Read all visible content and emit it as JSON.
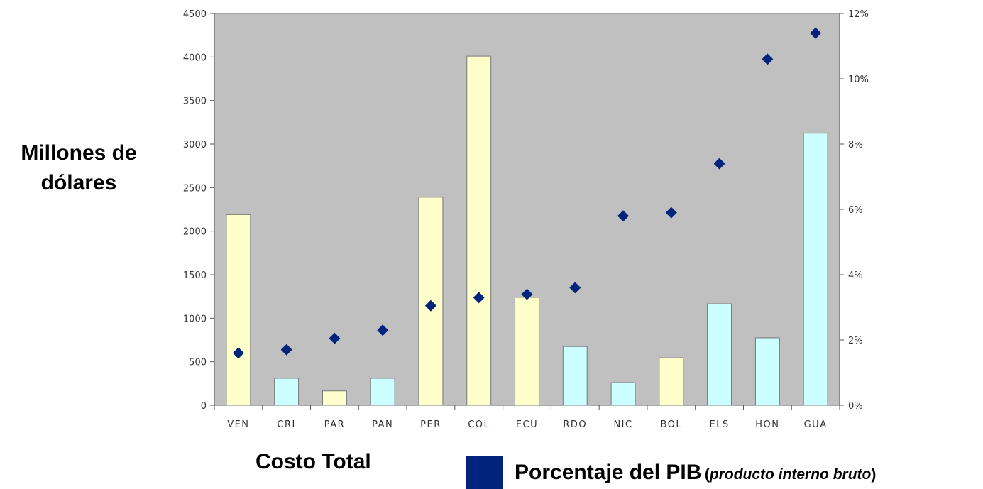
{
  "chart_data": {
    "type": "bar",
    "categories": [
      "VEN",
      "CRI",
      "PAR",
      "PAN",
      "PER",
      "COL",
      "ECU",
      "RDO",
      "NIC",
      "BOL",
      "ELS",
      "HON",
      "GUA"
    ],
    "series": [
      {
        "name": "Costo Total",
        "type": "bar",
        "axis": "left",
        "values": [
          2190,
          310,
          165,
          310,
          2390,
          4010,
          1240,
          675,
          260,
          545,
          1165,
          775,
          3125
        ],
        "bar_colors": [
          "#ffffcc",
          "#ccffff",
          "#ffffcc",
          "#ccffff",
          "#ffffcc",
          "#ffffcc",
          "#ffffcc",
          "#ccffff",
          "#ccffff",
          "#ffffcc",
          "#ccffff",
          "#ccffff",
          "#ccffff"
        ]
      },
      {
        "name": "Porcentaje del PIB",
        "type": "scatter",
        "axis": "right",
        "marker": "diamond",
        "color": "#00237c",
        "values": [
          1.6,
          1.7,
          2.05,
          2.3,
          3.05,
          3.3,
          3.4,
          3.6,
          5.8,
          5.9,
          7.4,
          10.6,
          11.4
        ]
      }
    ],
    "y_ticks": [
      0,
      500,
      1000,
      1500,
      2000,
      2500,
      3000,
      3500,
      4000,
      4500
    ],
    "y2_ticks": [
      "0%",
      "2%",
      "4%",
      "6%",
      "8%",
      "10%",
      "12%"
    ],
    "ylim": [
      0,
      4500
    ],
    "y2lim": [
      0,
      12
    ],
    "ylabel": "Millones de dólares",
    "plot_background": "#c0c0c0",
    "grid": false,
    "legend": {
      "bar_label": "Costo Total",
      "marker_label": "Porcentaje del PIB",
      "marker_note_open": "(",
      "marker_note": "producto interno bruto",
      "marker_note_close": ")"
    }
  }
}
